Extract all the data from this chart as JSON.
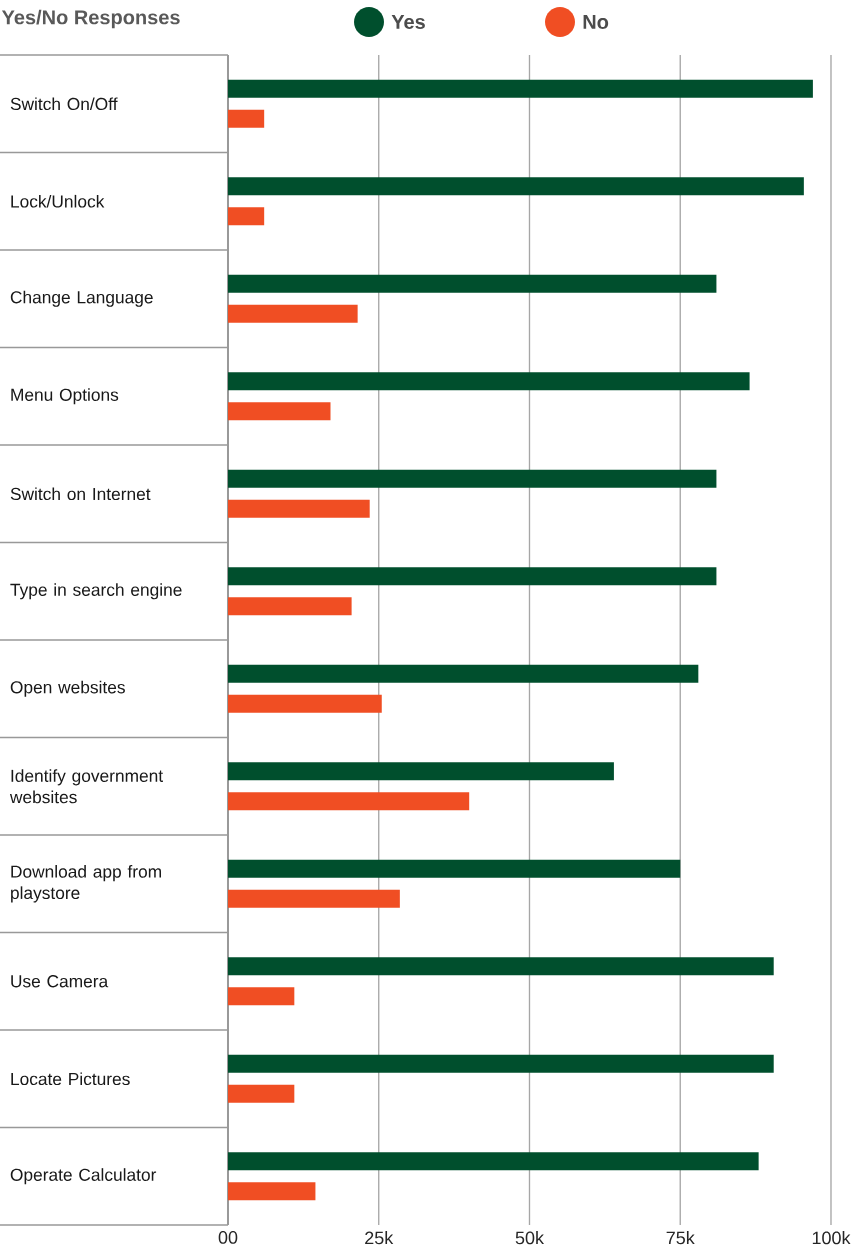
{
  "chart_data": {
    "type": "bar",
    "orientation": "horizontal",
    "title": "Yes/No Responses",
    "categories": [
      "Switch On/Off",
      "Lock/Unlock",
      "Change Language",
      "Menu Options",
      "Switch on Internet",
      "Type in search engine",
      "Open websites",
      "Identify government websites",
      "Download app from playstore",
      "Use Camera",
      "Locate Pictures",
      "Operate Calculator"
    ],
    "series": [
      {
        "name": "Yes",
        "color": "#004f2d",
        "values": [
          97000,
          95500,
          81000,
          86500,
          81000,
          81000,
          78000,
          64000,
          75000,
          90500,
          90500,
          88000
        ]
      },
      {
        "name": "No",
        "color": "#f04e23",
        "values": [
          6000,
          6000,
          21500,
          17000,
          23500,
          20500,
          25500,
          40000,
          28500,
          11000,
          11000,
          14500
        ]
      }
    ],
    "xlim": [
      0,
      100000
    ],
    "xticks": [
      {
        "value": 0,
        "label": "00"
      },
      {
        "value": 25000,
        "label": "25k"
      },
      {
        "value": 50000,
        "label": "50k"
      },
      {
        "value": 75000,
        "label": "75k"
      },
      {
        "value": 100000,
        "label": "100k"
      }
    ],
    "grid": "x",
    "legend": "top"
  }
}
